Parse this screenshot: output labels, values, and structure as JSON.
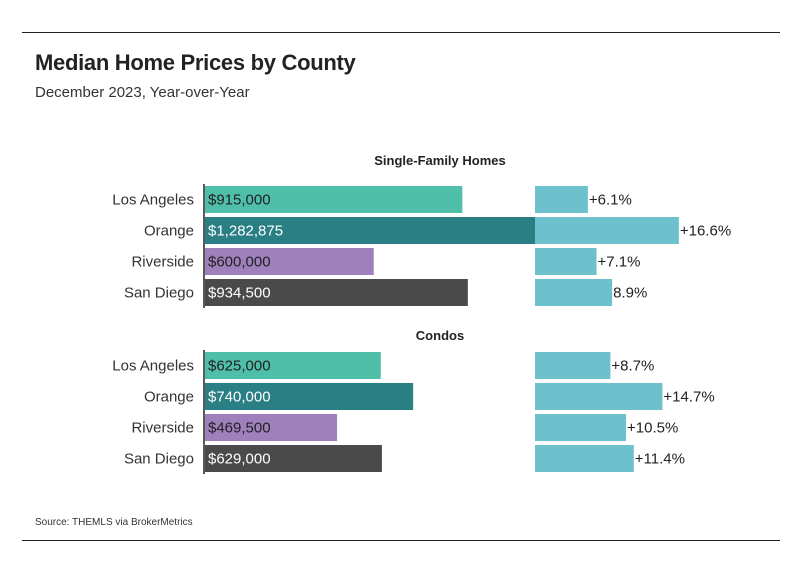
{
  "header": {
    "title": "Median Home Prices by County",
    "subtitle": "December 2023, Year-over-Year"
  },
  "footer": {
    "source": "Source:  THEMLS via BrokerMetrics"
  },
  "colors": {
    "Los Angeles": "#4fbfaa",
    "Orange": "#2a7f85",
    "Riverside": "#a07fbd",
    "San Diego": "#4a4a4a",
    "change": "#6cc1cc"
  },
  "chart_data": {
    "type": "bar",
    "categories": [
      "Los Angeles",
      "Orange",
      "Riverside",
      "San Diego"
    ],
    "price_axis_max": 1600000,
    "change_axis_max": 30,
    "groups": [
      {
        "title": "Single-Family Homes",
        "prices": [
          915000,
          1282875,
          600000,
          934500
        ],
        "price_labels": [
          "$915,000",
          "$1,282,875",
          "$600,000",
          "$934,500"
        ],
        "changes": [
          6.1,
          16.6,
          7.1,
          8.9
        ],
        "change_labels": [
          "+6.1%",
          "+16.6%",
          "+7.1%",
          "8.9%"
        ]
      },
      {
        "title": "Condos",
        "prices": [
          625000,
          740000,
          469500,
          629000
        ],
        "price_labels": [
          "$625,000",
          "$740,000",
          "$469,500",
          "$629,000"
        ],
        "changes": [
          8.7,
          14.7,
          10.5,
          11.4
        ],
        "change_labels": [
          "+8.7%",
          "+14.7%",
          "+10.5%",
          "+11.4%"
        ]
      }
    ]
  }
}
